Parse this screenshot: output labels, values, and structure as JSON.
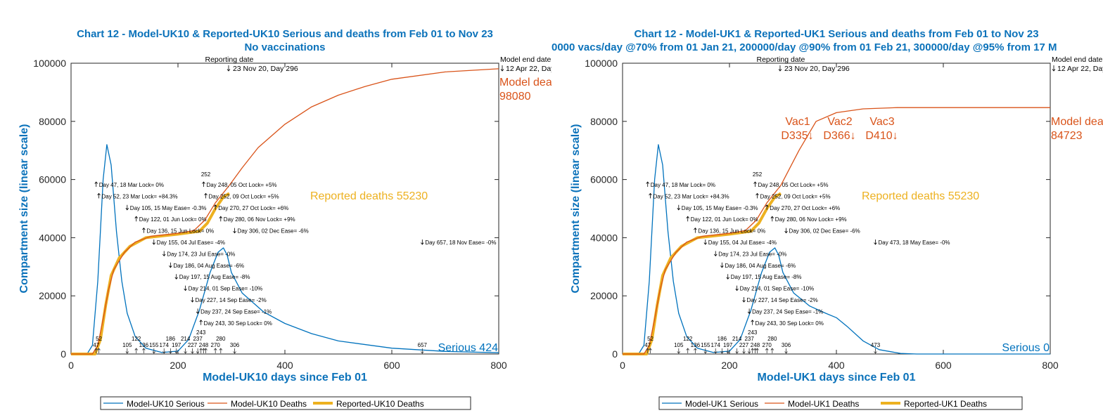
{
  "colors": {
    "serious": "#0072BD",
    "model_deaths": "#D95319",
    "reported_deaths": "#EDB120",
    "title": "#0B72BA"
  },
  "chart_data": [
    {
      "type": "line",
      "title": "Chart 12 - Model-UK10 & Reported-UK10 Serious and deaths from Feb 01 to Nov 23",
      "subtitle": "No vaccinations",
      "xlabel": "Model-UK10 days since Feb 01",
      "ylabel": "Compartment size (linear scale)",
      "xlim": [
        0,
        800
      ],
      "ylim": [
        0,
        100000
      ],
      "xticks": [
        "0",
        "200",
        "400",
        "600",
        "800"
      ],
      "yticks": [
        "0",
        "20000",
        "40000",
        "60000",
        "80000",
        "100000"
      ],
      "grid": false,
      "legend_placement": "bottom-outside",
      "legend": [
        "Model-UK10 Serious",
        "Model-UK10 Deaths",
        "Reported-UK10 Deaths"
      ],
      "series": [
        {
          "name": "Model-UK10 Serious",
          "x": [
            0,
            30,
            40,
            50,
            60,
            67,
            75,
            85,
            95,
            105,
            120,
            140,
            170,
            200,
            220,
            240,
            260,
            275,
            285,
            292,
            300,
            320,
            360,
            400,
            450,
            500,
            600,
            700,
            800
          ],
          "y": [
            0,
            0,
            3000,
            25000,
            60000,
            72000,
            65000,
            42000,
            25000,
            14000,
            6000,
            2000,
            500,
            1000,
            5000,
            15000,
            28000,
            35000,
            36500,
            34000,
            28000,
            21000,
            14500,
            10500,
            7000,
            4500,
            2000,
            900,
            424
          ]
        },
        {
          "name": "Model-UK10 Deaths",
          "x": [
            0,
            40,
            50,
            60,
            70,
            80,
            100,
            120,
            150,
            200,
            230,
            250,
            270,
            296,
            320,
            350,
            400,
            450,
            500,
            550,
            600,
            700,
            800
          ],
          "y": [
            0,
            0,
            3000,
            12000,
            22000,
            29000,
            35000,
            38500,
            40500,
            41500,
            42500,
            46000,
            52000,
            58000,
            64000,
            71000,
            79000,
            85000,
            89000,
            92000,
            94500,
            97000,
            98080
          ]
        },
        {
          "name": "Reported-UK10 Deaths",
          "x": [
            0,
            45,
            55,
            65,
            75,
            90,
            110,
            140,
            200,
            240,
            255,
            270,
            285,
            296
          ],
          "y": [
            0,
            0,
            5000,
            17000,
            27000,
            33000,
            37000,
            40000,
            41200,
            42200,
            45000,
            50000,
            54000,
            55230
          ]
        }
      ],
      "annotations": {
        "reporting_date_label": "Reporting date",
        "reporting_date": "23 Nov 20, Day 296",
        "reporting_day": 296,
        "model_end_label": "Model end date",
        "model_end": "12 Apr 22, Day",
        "model_end_day": 800,
        "model_deaths_label": "Model dea",
        "model_deaths_value": "98080",
        "reported_deaths_label": "Reported deaths 55230",
        "serious_label": "Serious 424",
        "interventions": [
          {
            "day": 47,
            "dir": "up",
            "text": "Day 47, 18 Mar Lock= 0%"
          },
          {
            "day": 52,
            "dir": "up",
            "text": "Day 52, 23 Mar Lock= +84.3%"
          },
          {
            "day": 105,
            "dir": "down",
            "text": "Day 105, 15 May Ease= -0.3%"
          },
          {
            "day": 122,
            "dir": "up",
            "text": "Day 122, 01 Jun Lock= 0%"
          },
          {
            "day": 136,
            "dir": "up",
            "text": "Day 136, 15 Jun Lock= 0%"
          },
          {
            "day": 155,
            "dir": "down",
            "text": "Day 155, 04 Jul Ease= -4%"
          },
          {
            "day": 174,
            "dir": "down",
            "text": "Day 174, 23 Jul Ease= -0%"
          },
          {
            "day": 186,
            "dir": "down",
            "text": "Day 186, 04 Aug Ease= -6%"
          },
          {
            "day": 197,
            "dir": "down",
            "text": "Day 197, 15 Aug Ease= -8%"
          },
          {
            "day": 214,
            "dir": "down",
            "text": "Day 214, 01 Sep Ease= -10%"
          },
          {
            "day": 227,
            "dir": "down",
            "text": "Day 227, 14 Sep Ease= -2%"
          },
          {
            "day": 237,
            "dir": "down",
            "text": "Day 237, 24 Sep Ease= -1%"
          },
          {
            "day": 243,
            "dir": "up",
            "text": "Day 243, 30 Sep Lock= 0%"
          },
          {
            "day": 248,
            "dir": "up",
            "text": "Day 248, 05 Oct Lock= +5%"
          },
          {
            "day": 252,
            "dir": "up",
            "text": "Day 252, 09 Oct Lock= +5%"
          },
          {
            "day": 270,
            "dir": "up",
            "text": "Day 270, 27 Oct Lock= +6%"
          },
          {
            "day": 280,
            "dir": "up",
            "text": "Day 280, 06 Nov Lock= +9%"
          },
          {
            "day": 306,
            "dir": "down",
            "text": "Day 306, 02 Dec Ease= -6%"
          },
          {
            "day": 657,
            "dir": "down",
            "text": "Day 657, 18 Nov Ease= -0%"
          }
        ],
        "vaccinations": []
      }
    },
    {
      "type": "line",
      "title": "Chart 12 - Model-UK1 & Reported-UK1 Serious and deaths from Feb 01 to Nov 23",
      "subtitle": "0000 vacs/day @70% from 01 Jan 21, 200000/day @90% from 01 Feb 21, 300000/day @95% from 17 M",
      "xlabel": "Model-UK1 days since Feb 01",
      "ylabel": "Compartment size (linear scale)",
      "xlim": [
        0,
        800
      ],
      "ylim": [
        0,
        100000
      ],
      "xticks": [
        "0",
        "200",
        "400",
        "600",
        "800"
      ],
      "yticks": [
        "0",
        "20000",
        "40000",
        "60000",
        "80000",
        "100000"
      ],
      "grid": false,
      "legend_placement": "bottom-outside",
      "legend": [
        "Model-UK1 Serious",
        "Model-UK1 Deaths",
        "Reported-UK1 Deaths"
      ],
      "series": [
        {
          "name": "Model-UK1 Serious",
          "x": [
            0,
            30,
            40,
            50,
            60,
            67,
            75,
            85,
            95,
            105,
            120,
            140,
            170,
            200,
            220,
            240,
            260,
            275,
            285,
            292,
            300,
            320,
            350,
            380,
            400,
            420,
            450,
            480,
            520,
            550,
            800
          ],
          "y": [
            0,
            0,
            3000,
            25000,
            60000,
            72000,
            65000,
            42000,
            25000,
            14000,
            6000,
            2000,
            500,
            1000,
            5000,
            15000,
            28000,
            35000,
            36500,
            34000,
            28000,
            21000,
            16500,
            14000,
            12500,
            9500,
            4500,
            1500,
            200,
            0,
            0
          ]
        },
        {
          "name": "Model-UK1 Deaths",
          "x": [
            0,
            40,
            50,
            60,
            70,
            80,
            100,
            120,
            150,
            200,
            230,
            250,
            270,
            296,
            330,
            362,
            400,
            450,
            514,
            800
          ],
          "y": [
            0,
            0,
            3000,
            12000,
            22000,
            29000,
            35000,
            38500,
            40500,
            41500,
            42500,
            46000,
            52000,
            58000,
            70000,
            80000,
            83000,
            84300,
            84723,
            84723
          ]
        },
        {
          "name": "Reported-UK1 Deaths",
          "x": [
            0,
            45,
            55,
            65,
            75,
            90,
            110,
            140,
            200,
            240,
            255,
            270,
            285,
            296
          ],
          "y": [
            0,
            0,
            5000,
            17000,
            27000,
            33000,
            37000,
            40000,
            41200,
            42200,
            45000,
            50000,
            54000,
            55230
          ]
        }
      ],
      "annotations": {
        "reporting_date_label": "Reporting date",
        "reporting_date": "23 Nov 20, Day 296",
        "reporting_day": 296,
        "model_end_label": "Model end date",
        "model_end": "12 Apr 22, Day",
        "model_end_day": 800,
        "model_deaths_label": "Model dea",
        "model_deaths_value": "84723",
        "reported_deaths_label": "Reported deaths 55230",
        "serious_label": "Serious 0",
        "interventions": [
          {
            "day": 47,
            "dir": "up",
            "text": "Day 47, 18 Mar Lock= 0%"
          },
          {
            "day": 52,
            "dir": "up",
            "text": "Day 52, 23 Mar Lock= +84.3%"
          },
          {
            "day": 105,
            "dir": "down",
            "text": "Day 105, 15 May Ease= -0.3%"
          },
          {
            "day": 122,
            "dir": "up",
            "text": "Day 122, 01 Jun Lock= 0%"
          },
          {
            "day": 136,
            "dir": "up",
            "text": "Day 136, 15 Jun Lock= 0%"
          },
          {
            "day": 155,
            "dir": "down",
            "text": "Day 155, 04 Jul Ease= -4%"
          },
          {
            "day": 174,
            "dir": "down",
            "text": "Day 174, 23 Jul Ease= -0%"
          },
          {
            "day": 186,
            "dir": "down",
            "text": "Day 186, 04 Aug Ease= -6%"
          },
          {
            "day": 197,
            "dir": "down",
            "text": "Day 197, 15 Aug Ease= -8%"
          },
          {
            "day": 214,
            "dir": "down",
            "text": "Day 214, 01 Sep Ease= -10%"
          },
          {
            "day": 227,
            "dir": "down",
            "text": "Day 227, 14 Sep Ease= -2%"
          },
          {
            "day": 237,
            "dir": "down",
            "text": "Day 237, 24 Sep Ease= -1%"
          },
          {
            "day": 243,
            "dir": "up",
            "text": "Day 243, 30 Sep Lock= 0%"
          },
          {
            "day": 248,
            "dir": "up",
            "text": "Day 248, 05 Oct Lock= +5%"
          },
          {
            "day": 252,
            "dir": "up",
            "text": "Day 252, 09 Oct Lock= +5%"
          },
          {
            "day": 270,
            "dir": "up",
            "text": "Day 270, 27 Oct Lock= +6%"
          },
          {
            "day": 280,
            "dir": "up",
            "text": "Day 280, 06 Nov Lock= +9%"
          },
          {
            "day": 306,
            "dir": "down",
            "text": "Day 306, 02 Dec Ease= -6%"
          },
          {
            "day": 473,
            "dir": "down",
            "text": "Day 473, 18 May Ease= -0%"
          }
        ],
        "vaccinations": [
          {
            "label": "Vac1",
            "day_label": "D335↓"
          },
          {
            "label": "Vac2",
            "day_label": "D366↓"
          },
          {
            "label": "Vac3",
            "day_label": "D410↓"
          }
        ]
      }
    }
  ]
}
